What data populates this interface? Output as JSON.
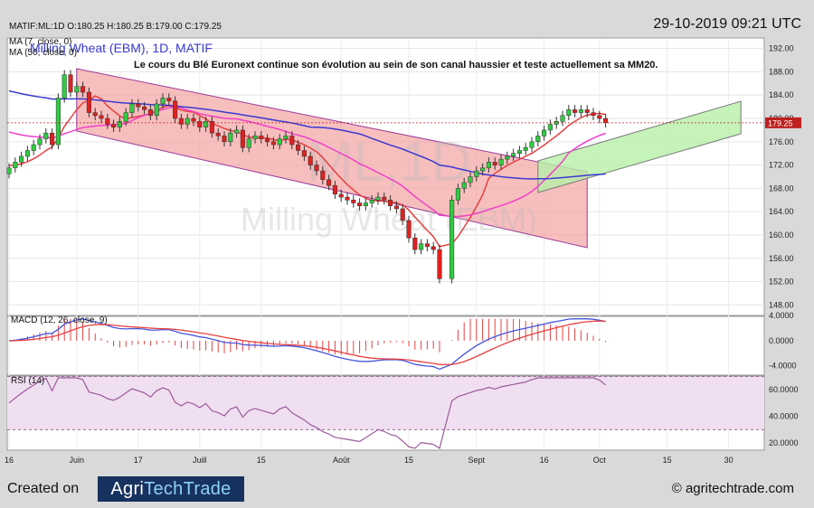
{
  "header": {
    "ticker_line": "MATIF:ML:1D O:180.25 H:180.25 B:179.00 C:179.25",
    "timestamp": "29-10-2019 09:21 UTC",
    "ma_short_label": "MA (7, close, 0)",
    "instrument_name": "Milling Wheat (EBM), 1D, MATIF",
    "ma_long_label": "MA (50, close, 0)",
    "caption": "Le cours du Blé Euronext continue son évolution au sein de son canal haussier et teste actuellement sa MM20."
  },
  "watermark": {
    "symbol": "ML,1D",
    "name": "Milling Wheat (EBM)"
  },
  "footer": {
    "created_on": "Created on",
    "logo_part1": "Agri",
    "logo_part2": "TechTrade",
    "site": "© agritechtrade.com"
  },
  "colors": {
    "up": "#2ecc40",
    "down": "#e02020",
    "ma7": "#e64040",
    "ma20": "#f040c8",
    "ma50": "#3a3ad0",
    "bear_channel": "#f4a3a3",
    "bull_channel": "#b6f0a8",
    "rsi_band": "#f0dff0",
    "macd_line": "#4455dd",
    "signal_line": "#e64040"
  },
  "chart_data": [
    {
      "type": "candlestick",
      "panel": "price",
      "y_ticks": [
        148.0,
        152.0,
        156.0,
        160.0,
        164.0,
        168.0,
        172.0,
        176.0,
        180.0,
        184.0,
        188.0,
        192.0
      ],
      "ylim": [
        146.5,
        193.5
      ],
      "x_labels": [
        "16",
        "Juin",
        "17",
        "Juill",
        "15",
        "Août",
        "15",
        "Sept",
        "16",
        "Oct",
        "15",
        "30"
      ],
      "x_label_pos": [
        0,
        11,
        21,
        31,
        41,
        54,
        65,
        76,
        87,
        96,
        107,
        117
      ],
      "last_price_label": "179.25",
      "last_price": 179.25,
      "closes": [
        171.5,
        172.5,
        173.5,
        174.5,
        175.5,
        176.5,
        177.5,
        175.5,
        183.5,
        187.5,
        184.5,
        185.5,
        184.5,
        181.0,
        180.5,
        180.0,
        179.0,
        178.5,
        179.5,
        181.0,
        182.5,
        182.0,
        181.5,
        180.5,
        182.5,
        183.5,
        183.0,
        180.0,
        179.0,
        180.0,
        179.5,
        178.5,
        179.5,
        177.5,
        177.0,
        176.0,
        177.5,
        178.0,
        175.0,
        176.5,
        177.0,
        176.5,
        176.0,
        175.5,
        176.5,
        177.0,
        175.5,
        174.5,
        173.5,
        172.0,
        171.0,
        169.5,
        168.5,
        167.0,
        166.5,
        166.0,
        165.5,
        165.0,
        165.5,
        166.0,
        166.5,
        166.0,
        165.0,
        164.5,
        162.5,
        159.5,
        157.5,
        158.5,
        158.0,
        157.5,
        152.5,
        166.0,
        168.0,
        169.0,
        170.0,
        171.0,
        171.5,
        172.5,
        172.0,
        173.0,
        173.5,
        174.0,
        174.5,
        175.0,
        176.0,
        177.0,
        178.0,
        179.0,
        179.5,
        180.5,
        181.5,
        181.0,
        181.5,
        181.0,
        180.5,
        180.0,
        179.25
      ],
      "candle_x": [
        0,
        1,
        2,
        3,
        4,
        5,
        6,
        7,
        8,
        9,
        10,
        11,
        12,
        13,
        14,
        15,
        16,
        17,
        18,
        19,
        20,
        21,
        22,
        23,
        24,
        25,
        26,
        27,
        28,
        29,
        30,
        31,
        32,
        33,
        34,
        35,
        36,
        37,
        38,
        39,
        40,
        41,
        42,
        43,
        44,
        45,
        46,
        47,
        48,
        49,
        50,
        51,
        52,
        53,
        54,
        55,
        56,
        57,
        58,
        59,
        60,
        61,
        62,
        63,
        64,
        65,
        66,
        67,
        68,
        69,
        70,
        72,
        73,
        74,
        75,
        76,
        77,
        78,
        79,
        80,
        81,
        82,
        83,
        84,
        85,
        86,
        87,
        88,
        89,
        90,
        91,
        92,
        93,
        94,
        95,
        96,
        97
      ]
    },
    {
      "type": "line",
      "panel": "macd",
      "label": "MACD (12, 26, close, 9)",
      "y_ticks": [
        -4.0,
        0.0,
        4.0
      ],
      "ylim": [
        -5.2,
        3.6
      ]
    },
    {
      "type": "line",
      "panel": "rsi",
      "label": "RSI (14)",
      "y_ticks": [
        20.0,
        40.0,
        60.0
      ],
      "ylim": [
        16,
        69
      ],
      "band": [
        30,
        70
      ]
    }
  ]
}
